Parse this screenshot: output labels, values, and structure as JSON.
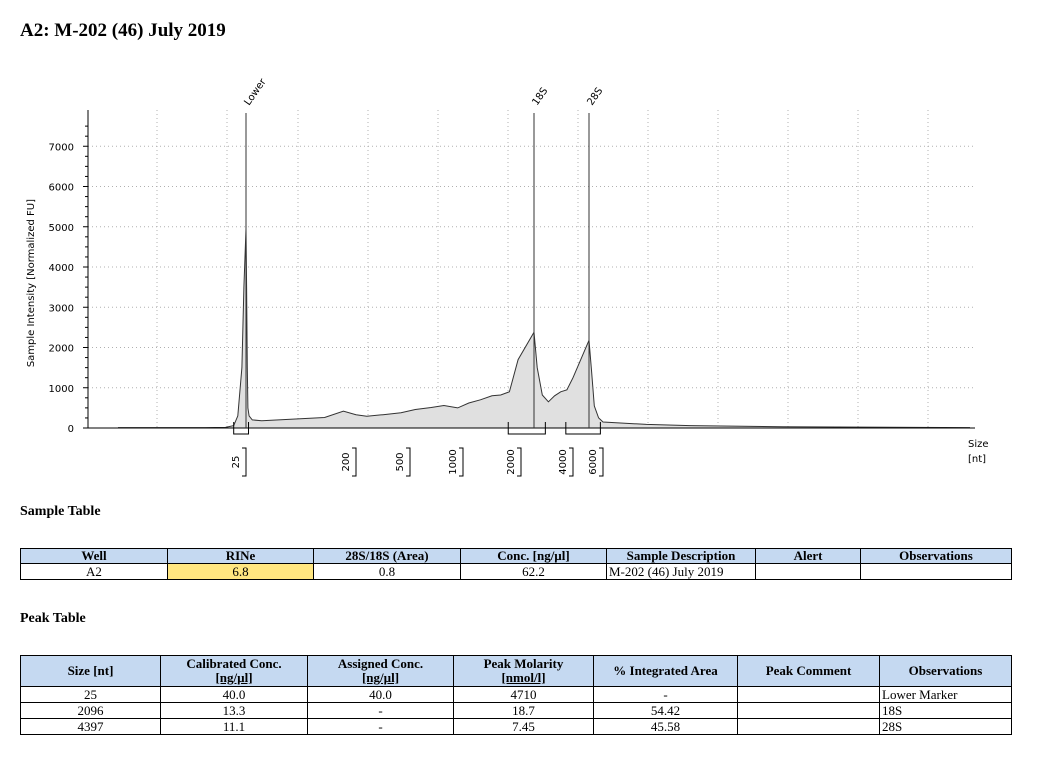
{
  "title": "A2: M-202 (46) July 2019",
  "chart_data": {
    "type": "line",
    "ylabel": "Sample Intensity [Normalized FU]",
    "xlabel": "Size\n[nt]",
    "yticks": [
      0,
      1000,
      2000,
      3000,
      4000,
      5000,
      6000,
      7000
    ],
    "ylim": [
      0,
      7600
    ],
    "size_ticks": [
      "25",
      "200",
      "500",
      "1000",
      "2000",
      "4000",
      "6000"
    ],
    "peak_labels": [
      {
        "label": "Lower",
        "size": 25
      },
      {
        "label": "18S",
        "size": 2096
      },
      {
        "label": "28S",
        "size": 4397
      }
    ],
    "trace": {
      "x_scale": "size [nt] along electropherogram",
      "points": [
        [
          5,
          10
        ],
        [
          15,
          10
        ],
        [
          20,
          15
        ],
        [
          22,
          60
        ],
        [
          23,
          300
        ],
        [
          24,
          1500
        ],
        [
          24.5,
          3500
        ],
        [
          25,
          4950
        ],
        [
          26,
          3500
        ],
        [
          27,
          1500
        ],
        [
          28,
          500
        ],
        [
          30,
          300
        ],
        [
          35,
          200
        ],
        [
          50,
          180
        ],
        [
          100,
          220
        ],
        [
          150,
          260
        ],
        [
          180,
          420
        ],
        [
          200,
          330
        ],
        [
          260,
          290
        ],
        [
          350,
          330
        ],
        [
          450,
          380
        ],
        [
          550,
          460
        ],
        [
          700,
          510
        ],
        [
          820,
          560
        ],
        [
          950,
          500
        ],
        [
          1100,
          620
        ],
        [
          1300,
          700
        ],
        [
          1500,
          800
        ],
        [
          1650,
          820
        ],
        [
          1800,
          900
        ],
        [
          1950,
          1700
        ],
        [
          2096,
          2380
        ],
        [
          2250,
          1500
        ],
        [
          2500,
          820
        ],
        [
          2800,
          650
        ],
        [
          3100,
          800
        ],
        [
          3400,
          900
        ],
        [
          3700,
          950
        ],
        [
          4000,
          1250
        ],
        [
          4397,
          2180
        ],
        [
          4700,
          1400
        ],
        [
          5000,
          550
        ],
        [
          5500,
          250
        ],
        [
          6000,
          150
        ],
        [
          7000,
          90
        ],
        [
          8000,
          60
        ],
        [
          10000,
          30
        ],
        [
          14000,
          10
        ]
      ]
    },
    "peak_regions": [
      {
        "label": "Lower",
        "from": 22,
        "to": 29
      },
      {
        "label": "18S",
        "from": 1780,
        "to": 2650
      },
      {
        "label": "28S",
        "from": 3650,
        "to": 5700
      }
    ]
  },
  "sample_section": {
    "title": "Sample Table",
    "headers": [
      "Well",
      "RINe",
      "28S/18S (Area)",
      "Conc. [ng/µl]",
      "Sample Description",
      "Alert",
      "Observations"
    ],
    "row": [
      "A2",
      "6.8",
      "0.8",
      "62.2",
      "M-202 (46) July 2019",
      "",
      ""
    ]
  },
  "peak_section": {
    "title": "Peak Table",
    "headers": [
      [
        "Size [nt]",
        ""
      ],
      [
        "Calibrated Conc.",
        "[ng/µl]"
      ],
      [
        "Assigned Conc.",
        "[ng/µl]"
      ],
      [
        "Peak Molarity",
        "[nmol/l]"
      ],
      [
        "% Integrated Area",
        ""
      ],
      [
        "Peak Comment",
        ""
      ],
      [
        "Observations",
        ""
      ]
    ],
    "rows": [
      [
        "25",
        "40.0",
        "40.0",
        "4710",
        "-",
        "",
        "Lower Marker"
      ],
      [
        "2096",
        "13.3",
        "-",
        "18.7",
        "54.42",
        "",
        "18S"
      ],
      [
        "4397",
        "11.1",
        "-",
        "7.45",
        "45.58",
        "",
        "28S"
      ]
    ]
  }
}
